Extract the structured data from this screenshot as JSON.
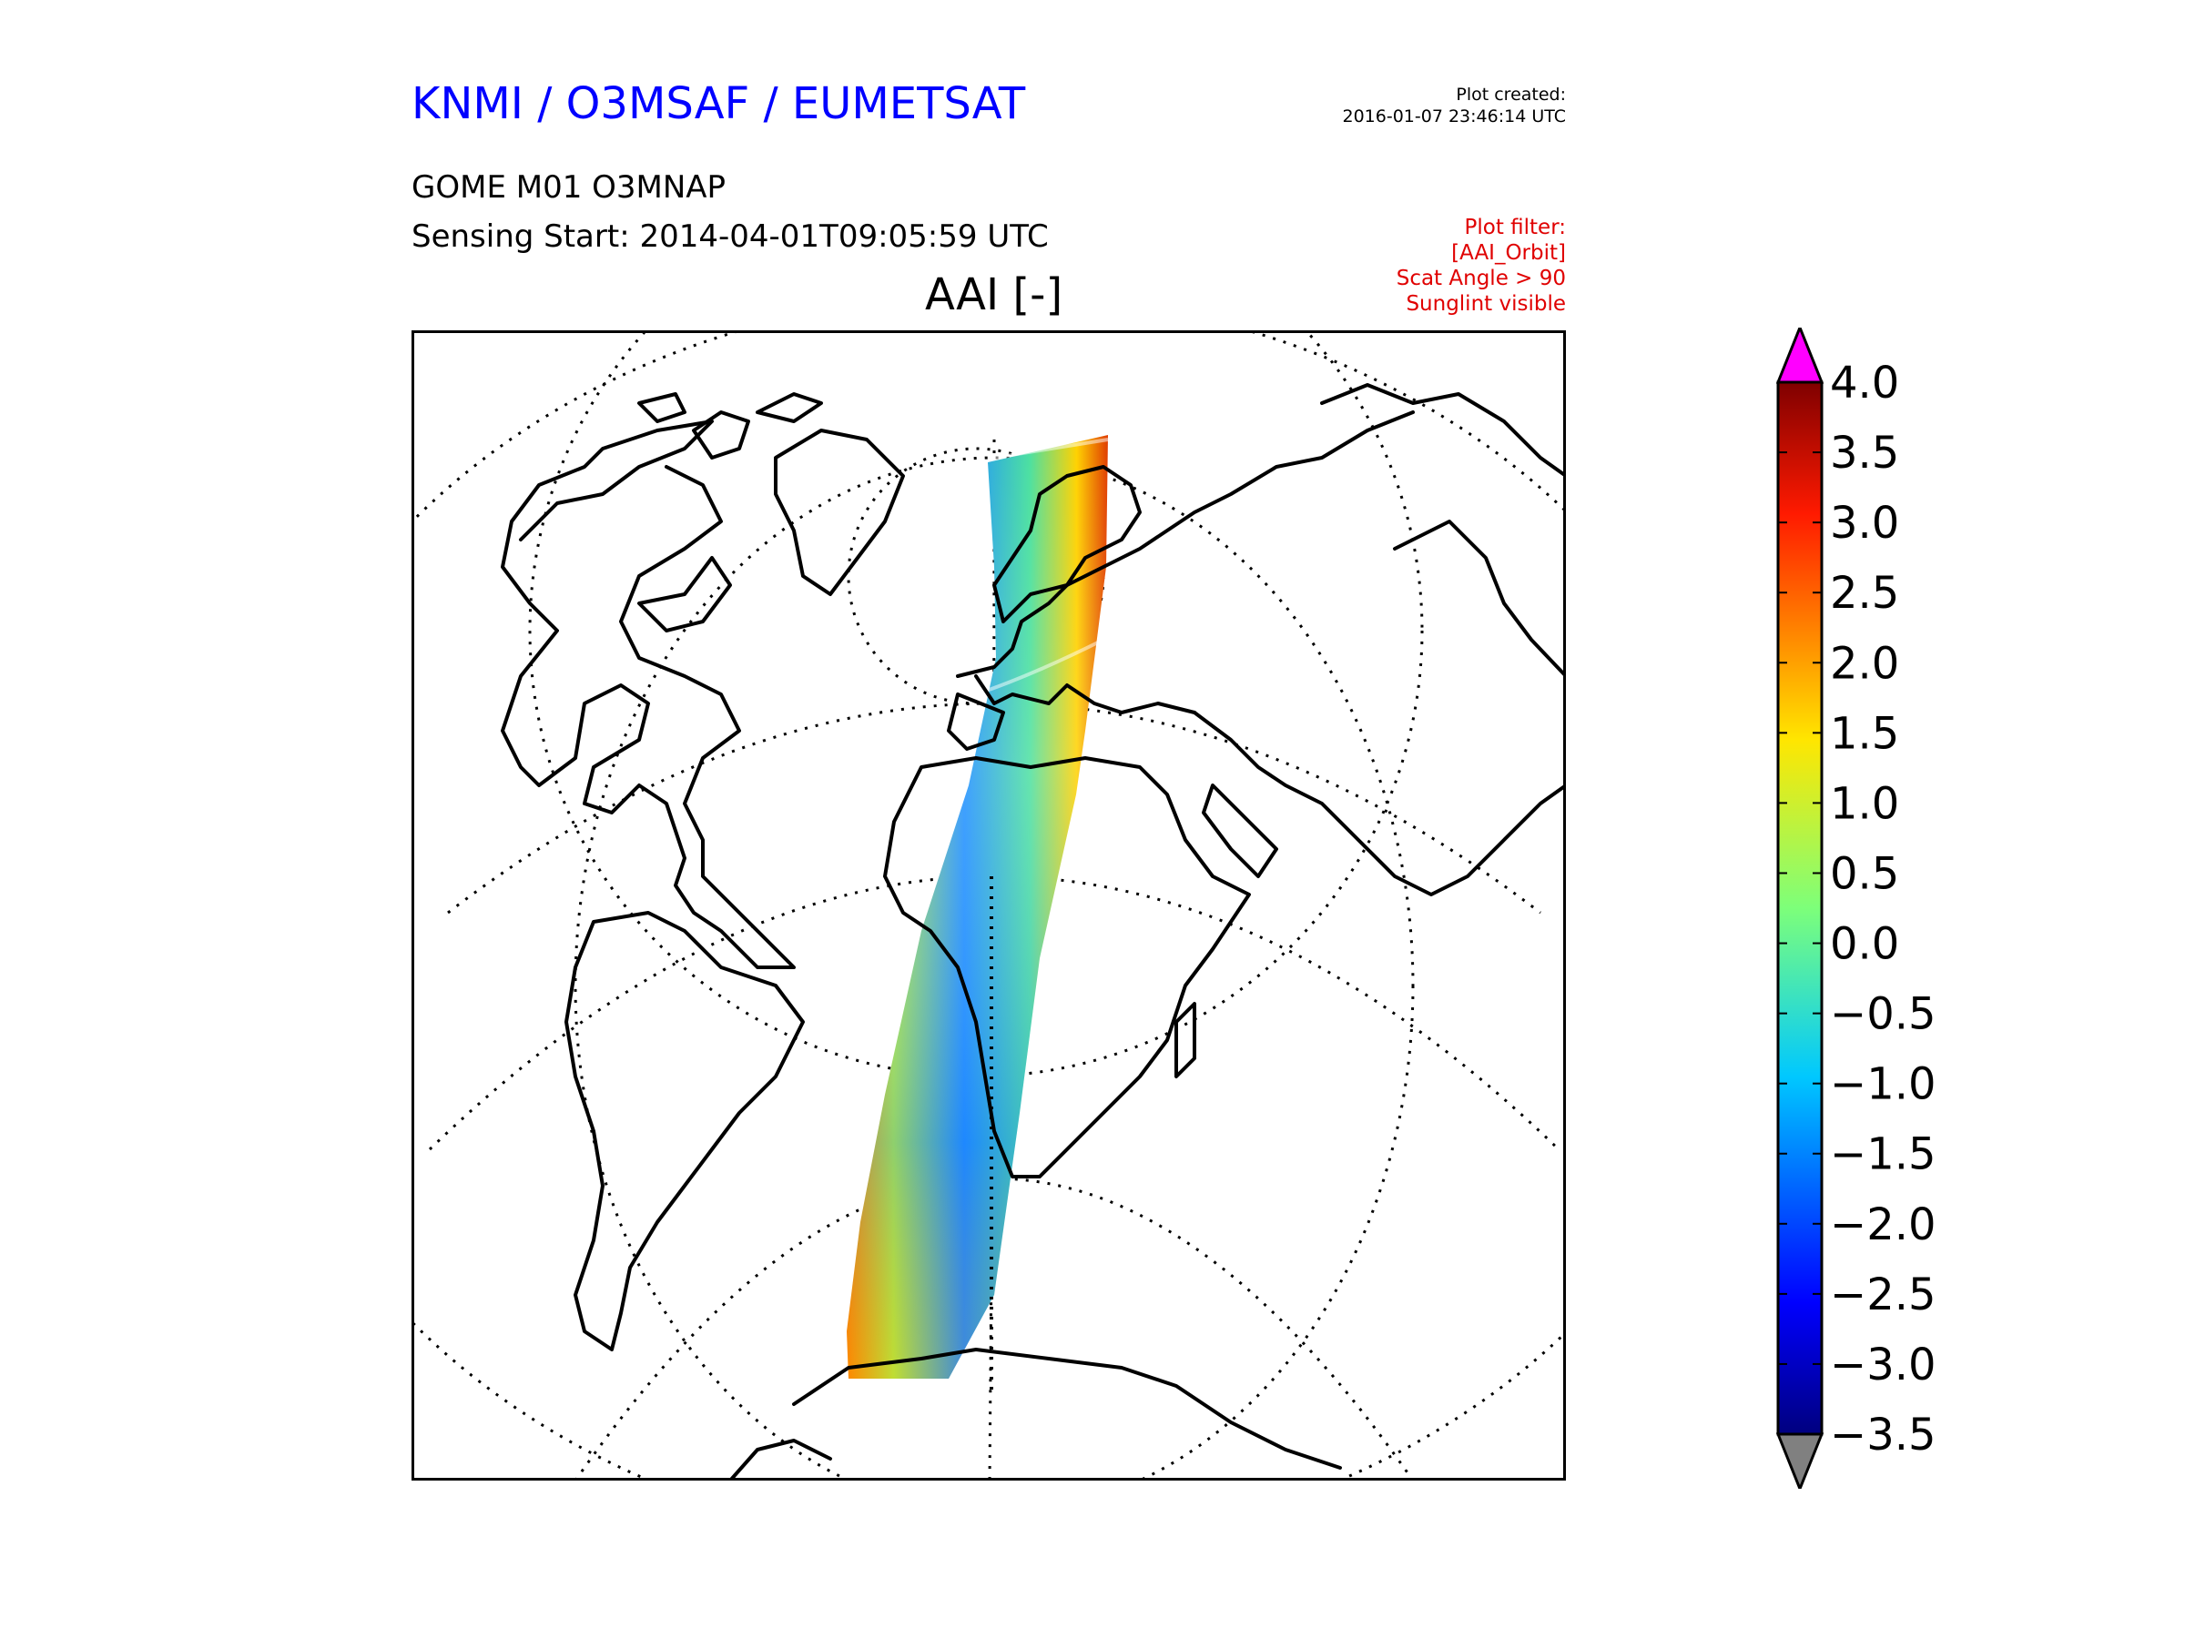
{
  "header": {
    "title": "KNMI / O3MSAF / EUMETSAT",
    "created_label": "Plot created:",
    "created_time": "2016-01-07 23:46:14 UTC",
    "product": "GOME M01 O3MNAP",
    "sensing": "Sensing Start: 2014-04-01T09:05:59 UTC",
    "filter_lines": [
      "Plot filter:",
      "[AAI_Orbit]",
      "Scat Angle > 90",
      "Sunglint visible"
    ]
  },
  "map": {
    "variable_title": "AAI [-]",
    "projection": "near-sided perspective",
    "coastline_color": "#000000",
    "graticule_style": "dotted",
    "swath_colors": [
      "#1e90ff",
      "#00c8ff",
      "#4be0a0",
      "#b4f03c",
      "#ffd200",
      "#ff8c00",
      "#e03c00"
    ]
  },
  "colorbar": {
    "min": -3.5,
    "max": 4.0,
    "extend": "both",
    "over_color": "#ff00ff",
    "under_color": "#808080",
    "tick_labels": [
      "4.0",
      "3.5",
      "3.0",
      "2.5",
      "2.0",
      "1.5",
      "1.0",
      "0.5",
      "0.0",
      "−0.5",
      "−1.0",
      "−1.5",
      "−2.0",
      "−2.5",
      "−3.0",
      "−3.5"
    ]
  }
}
